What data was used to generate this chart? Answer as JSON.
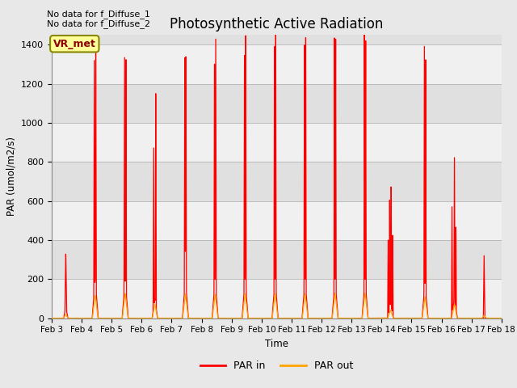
{
  "title": "Photosynthetic Active Radiation",
  "ylabel": "PAR (umol/m2/s)",
  "xlabel": "Time",
  "ylim": [
    0,
    1450
  ],
  "xlim_days": [
    3,
    18
  ],
  "background_color": "#e8e8e8",
  "plot_bg_color": "#e0e0e0",
  "par_in_color": "#ff0000",
  "par_out_color": "#ffa500",
  "legend_box_label": "VR_met",
  "legend_box_color": "#ffff99",
  "legend_box_edge_color": "#888800",
  "annotation1": "No data for f_Diffuse_1",
  "annotation2": "No data for f_Diffuse_2",
  "xtick_labels": [
    "Feb 3",
    "Feb 4",
    "Feb 5",
    "Feb 6",
    "Feb 7",
    "Feb 8",
    "Feb 9",
    "Feb 10",
    "Feb 11",
    "Feb 12",
    "Feb 13",
    "Feb 14",
    "Feb 15",
    "Feb 16",
    "Feb 17",
    "Feb 18"
  ],
  "xtick_positions": [
    3,
    4,
    5,
    6,
    7,
    8,
    9,
    10,
    11,
    12,
    13,
    14,
    15,
    16,
    17,
    18
  ],
  "ytick_labels": [
    "0",
    "200",
    "400",
    "600",
    "800",
    "1000",
    "1200",
    "1400"
  ],
  "ytick_positions": [
    0,
    200,
    400,
    600,
    800,
    1000,
    1200,
    1400
  ]
}
